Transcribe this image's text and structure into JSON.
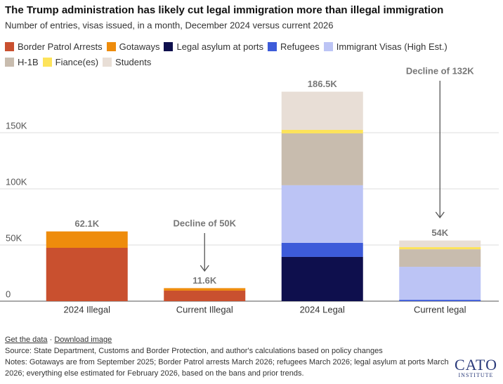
{
  "chart_data": {
    "type": "stacked_bar",
    "title": "The Trump administration has likely cut legal immigration more than illegal immigration",
    "subtitle": "Number of entries, visas issued, in a month, December 2024 versus current 2026",
    "categories": [
      "2024 Illegal",
      "Current Illegal",
      "2024 Legal",
      "Current legal"
    ],
    "series": [
      {
        "name": "Border Patrol Arrests",
        "color": "#c9502f",
        "values": [
          47500,
          9400,
          null,
          null
        ]
      },
      {
        "name": "Gotaways",
        "color": "#ee8c0c",
        "values": [
          14600,
          2200,
          null,
          null
        ]
      },
      {
        "name": "Legal asylum at ports",
        "color": "#0e0f4d",
        "values": [
          null,
          null,
          39400,
          0
        ]
      },
      {
        "name": "Refugees",
        "color": "#3d5bd9",
        "values": [
          null,
          null,
          12500,
          1200
        ]
      },
      {
        "name": "Immigrant Visas (High Est.)",
        "color": "#bcc4f5",
        "values": [
          null,
          null,
          51300,
          29400
        ]
      },
      {
        "name": "H-1B",
        "color": "#c8bcae",
        "values": [
          null,
          null,
          46200,
          15600
        ]
      },
      {
        "name": "Fiance(es)",
        "color": "#fde35a",
        "values": [
          null,
          null,
          3100,
          1900
        ]
      },
      {
        "name": "Students",
        "color": "#e8ded6",
        "values": [
          null,
          null,
          34000,
          5900
        ]
      }
    ],
    "totals": {
      "values": [
        62100,
        11600,
        186500,
        54000
      ],
      "value_labels": [
        "62.1K",
        "11.6K",
        "186.5K",
        "54K"
      ]
    },
    "annotations": [
      "Decline of 50K",
      "Decline of 132K"
    ],
    "ylim": [
      0,
      200000
    ],
    "yticks": [
      0,
      {
        "value": 50000,
        "label": "50K"
      },
      {
        "value": 100000,
        "label": "100K"
      },
      {
        "value": 150000,
        "label": "150K"
      }
    ],
    "grid": true
  },
  "footer": {
    "links": [
      "Get the data",
      "Download image"
    ],
    "source": "Source: State Department, Customs and Border Protection, and author's calculations based on policy changes",
    "notes": "Notes: Gotaways are from September 2025; Border Patrol arrests March 2026; refugees March 2026; legal asylum at ports March 2026; everything else estimated for February 2026, based on the bans and prior trends.",
    "logo": [
      "CATO",
      "INSTITUTE"
    ]
  }
}
